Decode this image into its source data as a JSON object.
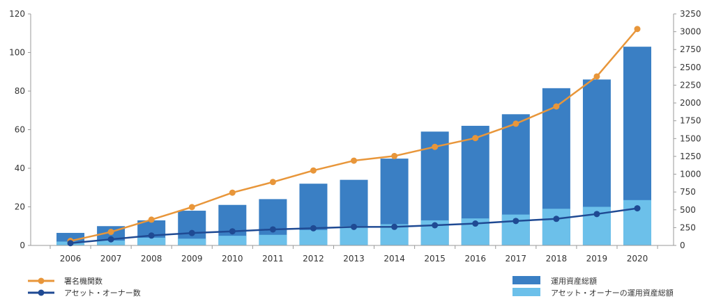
{
  "chart_data": {
    "type": "bar",
    "categories": [
      "2006",
      "2007",
      "2008",
      "2009",
      "2010",
      "2011",
      "2012",
      "2013",
      "2014",
      "2015",
      "2016",
      "2017",
      "2018",
      "2019",
      "2020"
    ],
    "series": [
      {
        "name": "運用資産総額",
        "kind": "stacked-bar-total",
        "axis": "left",
        "values": [
          6.5,
          10,
          13,
          18,
          21,
          24,
          32,
          34,
          45,
          59,
          62,
          68,
          81.5,
          86,
          103
        ]
      },
      {
        "name": "アセット・オーナーの運用資産総額",
        "kind": "stacked-bar-base",
        "axis": "left",
        "values": [
          2,
          2.5,
          4,
          3.5,
          5,
          5.5,
          8,
          10,
          11,
          13,
          14,
          16,
          19,
          20,
          23.5
        ]
      },
      {
        "name": "署名機関数",
        "kind": "line",
        "axis": "right",
        "values": [
          63,
          190,
          362,
          538,
          741,
          890,
          1052,
          1190,
          1255,
          1384,
          1507,
          1709,
          1951,
          2372,
          3038
        ]
      },
      {
        "name": "アセット・オーナー数",
        "kind": "line",
        "axis": "right",
        "values": [
          32,
          86,
          139,
          174,
          198,
          225,
          241,
          260,
          261,
          283,
          307,
          343,
          373,
          441,
          521
        ]
      }
    ],
    "left_axis": {
      "min": 0,
      "max": 120,
      "ticks": [
        0,
        20,
        40,
        60,
        80,
        100,
        120
      ]
    },
    "right_axis": {
      "min": 0,
      "max": 3250,
      "ticks": [
        0,
        250,
        500,
        750,
        1000,
        1250,
        1500,
        1750,
        2000,
        2250,
        2500,
        2750,
        3000,
        3250
      ]
    },
    "legend": {
      "left": [
        "署名機関数",
        "アセット・オーナー数"
      ],
      "right": [
        "運用資産総額",
        "アセット・オーナーの運用資産総額"
      ]
    },
    "colors": {
      "total_bar": "#3a7fc4",
      "asset_owner_bar": "#6cc0ea",
      "signatories_line": "#e8963a",
      "asset_owner_line": "#1f4a93"
    }
  }
}
